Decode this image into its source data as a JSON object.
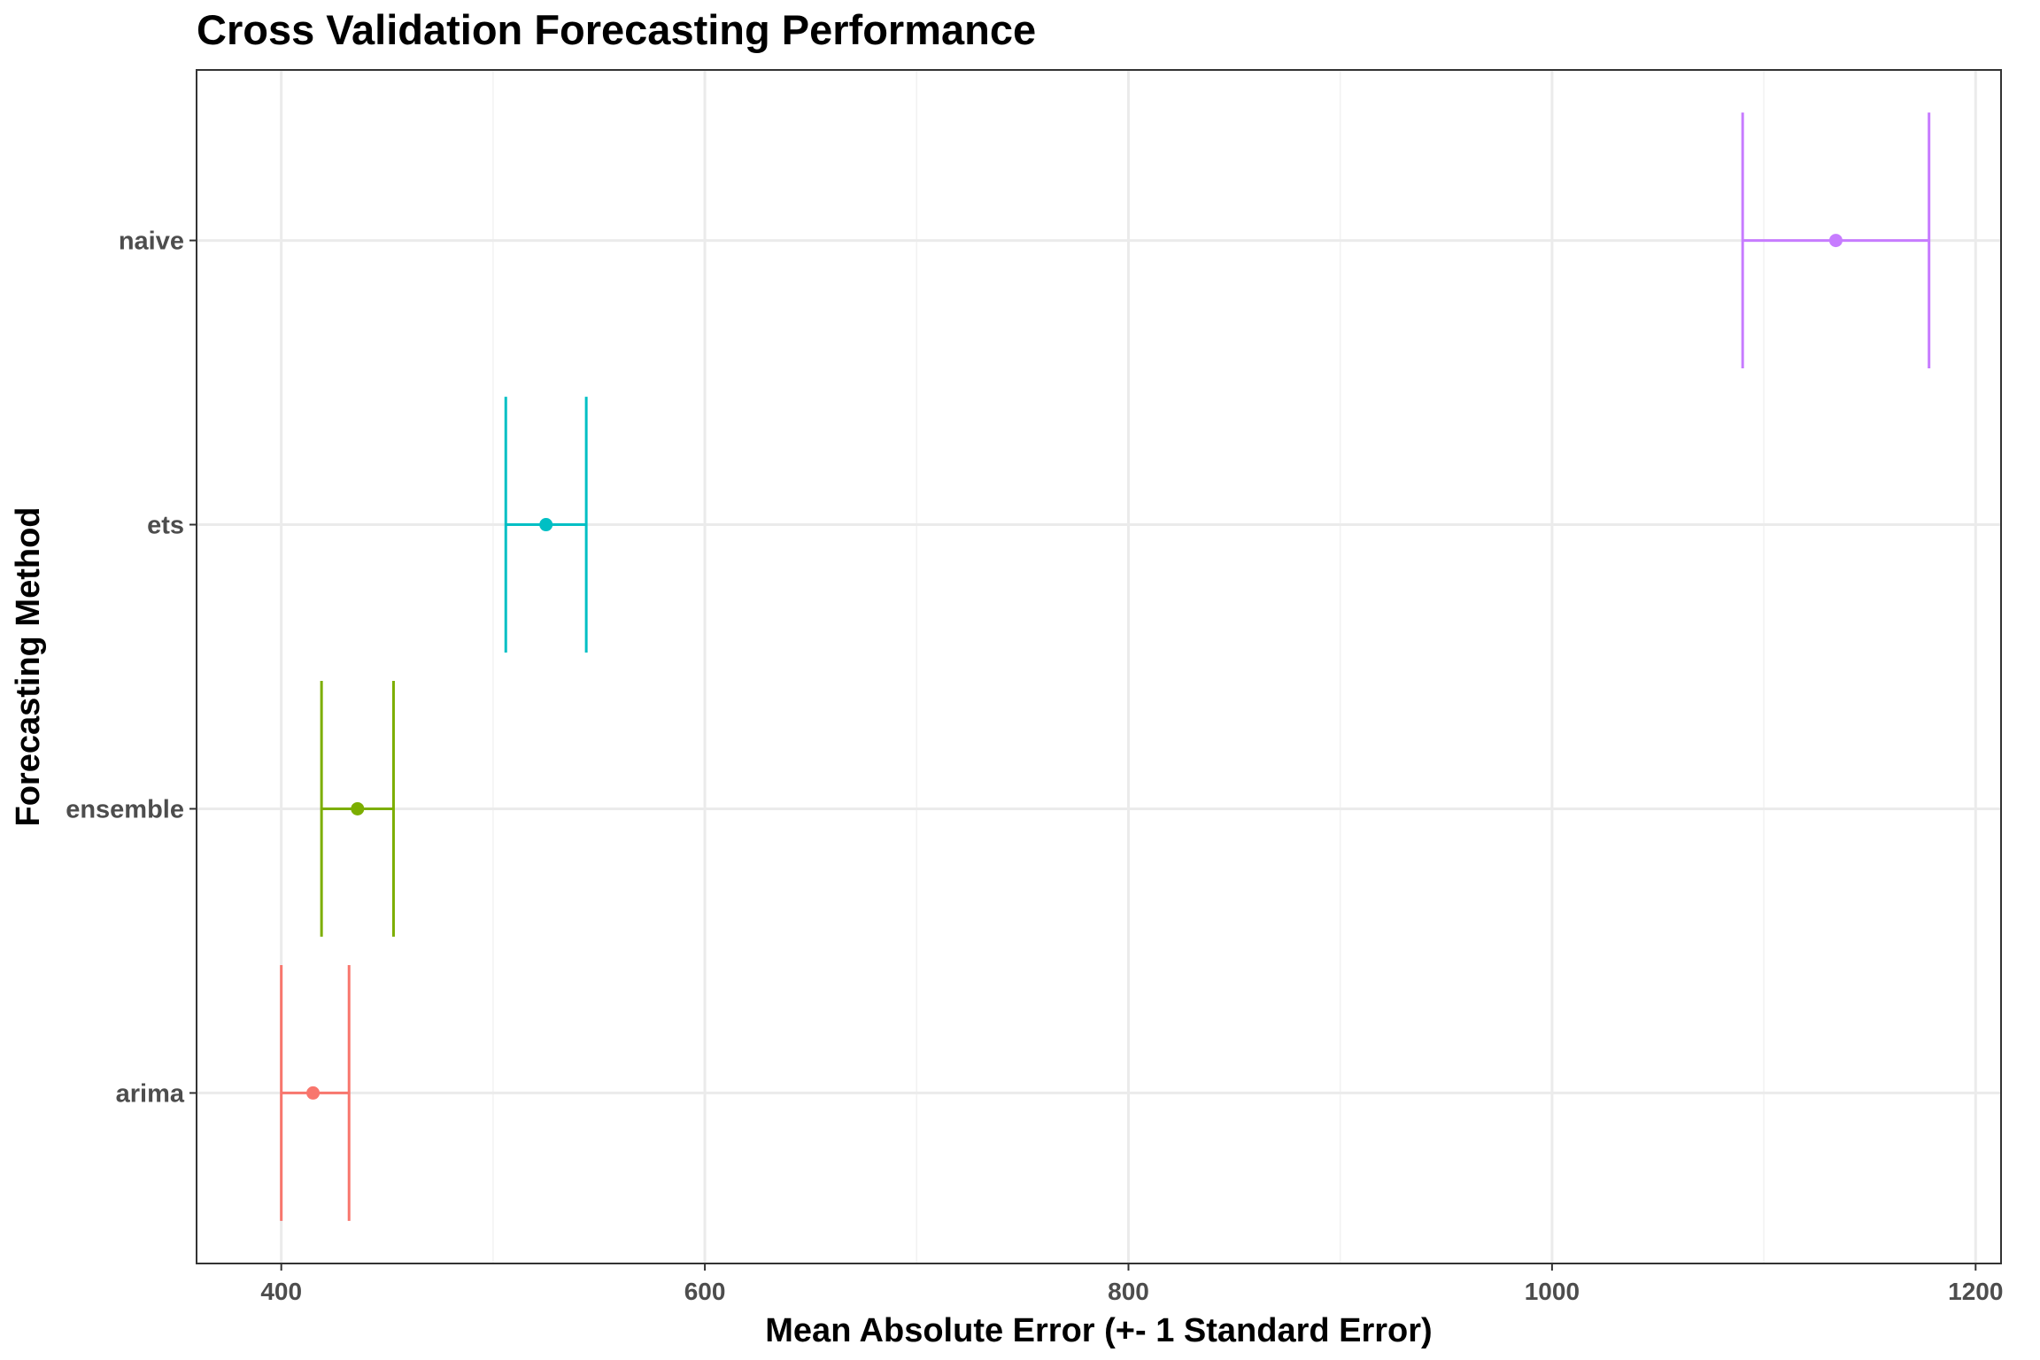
{
  "chart_data": {
    "type": "errorbar",
    "title": "Cross Validation Forecasting Performance",
    "xlabel": "Mean Absolute Error (+- 1 Standard Error)",
    "ylabel": "Forecasting Method",
    "xlim": [
      360,
      1212
    ],
    "xticks": [
      400,
      600,
      800,
      1000,
      1200
    ],
    "x_minor_gridlines": [
      500,
      700,
      900,
      1100
    ],
    "grid": true,
    "legend": "none",
    "categories": [
      "arima",
      "ensemble",
      "ets",
      "naive"
    ],
    "series": [
      {
        "category": "arima",
        "mean": 415,
        "lower": 400,
        "upper": 432,
        "color": "#F8766D"
      },
      {
        "category": "ensemble",
        "mean": 436,
        "lower": 419,
        "upper": 453,
        "color": "#7CAE00"
      },
      {
        "category": "ets",
        "mean": 525,
        "lower": 506,
        "upper": 544,
        "color": "#00BFC4"
      },
      {
        "category": "naive",
        "mean": 1134,
        "lower": 1090,
        "upper": 1178,
        "color": "#C77CFF"
      }
    ]
  },
  "colors": {
    "grid_major": "#ebebeb",
    "grid_minor": "#f2f2f2",
    "panel_border": "#333333",
    "tick_mark": "#333333"
  }
}
